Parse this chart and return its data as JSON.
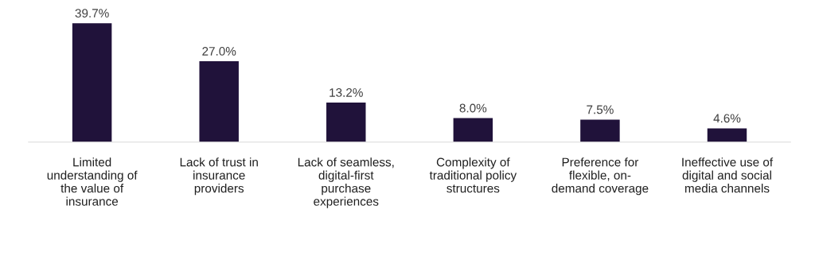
{
  "chart_data": {
    "type": "bar",
    "categories": [
      "Limited\nunderstanding of\nthe value of\ninsurance",
      "Lack of trust in\ninsurance\nproviders",
      "Lack of seamless,\ndigital-first\npurchase\nexperiences",
      "Complexity of\ntraditional policy\nstructures",
      "Preference for\nflexible, on-\ndemand coverage",
      "Ineffective use of\ndigital and social\nmedia channels"
    ],
    "values": [
      39.7,
      27.0,
      13.2,
      8.0,
      7.5,
      4.6
    ],
    "value_labels": [
      "39.7%",
      "27.0%",
      "13.2%",
      "8.0%",
      "7.5%",
      "4.6%"
    ],
    "color": "#20123a",
    "grid": false,
    "legend": false
  }
}
